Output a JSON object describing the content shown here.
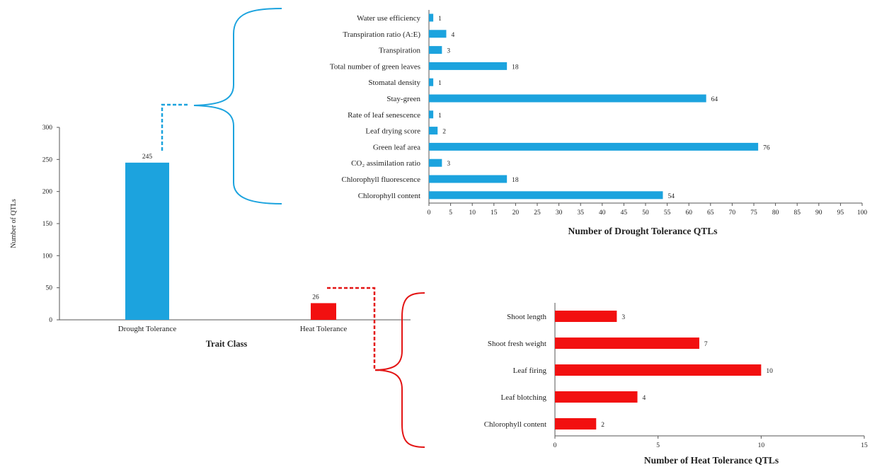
{
  "colors": {
    "drought": "#1CA3DE",
    "heat": "#F21010",
    "axis": "#555555"
  },
  "chart_data": [
    {
      "type": "bar",
      "orientation": "vertical",
      "categories": [
        "Drought Tolerance",
        "Heat Tolerance"
      ],
      "values": [
        245,
        26
      ],
      "bar_labels": [
        "245",
        "26"
      ],
      "xlabel": "Trait Class",
      "ylabel": "Number of QTLs",
      "ylim": [
        0,
        300
      ],
      "yticks": [
        0,
        50,
        100,
        150,
        200,
        250,
        300
      ],
      "colors": [
        "#1CA3DE",
        "#F21010"
      ]
    },
    {
      "type": "bar",
      "orientation": "horizontal",
      "categories": [
        "Water use efficiency",
        "Transpiration ratio (A:E)",
        "Transpiration",
        "Total number of green leaves",
        "Stomatal density",
        "Stay-green",
        "Rate of leaf senescence",
        "Leaf drying score",
        "Green leaf area",
        "CO₂ assimilation ratio",
        "Chlorophyll fluorescence",
        "Chlorophyll content"
      ],
      "values": [
        1,
        4,
        3,
        18,
        1,
        64,
        1,
        2,
        76,
        3,
        18,
        54
      ],
      "xlabel": "Number of Drought Tolerance QTLs",
      "xlim": [
        0,
        100
      ],
      "xticks": [
        0,
        5,
        10,
        15,
        20,
        25,
        30,
        35,
        40,
        45,
        50,
        55,
        60,
        65,
        70,
        75,
        80,
        85,
        90,
        95,
        100
      ],
      "color": "#1CA3DE"
    },
    {
      "type": "bar",
      "orientation": "horizontal",
      "categories": [
        "Shoot length",
        "Shoot fresh weight",
        "Leaf firing",
        "Leaf blotching",
        "Chlorophyll content"
      ],
      "values": [
        3,
        7,
        10,
        4,
        2
      ],
      "xlabel": "Number of Heat Tolerance QTLs",
      "xlim": [
        0,
        15
      ],
      "xticks": [
        0,
        5,
        10,
        15
      ],
      "color": "#F21010"
    }
  ]
}
